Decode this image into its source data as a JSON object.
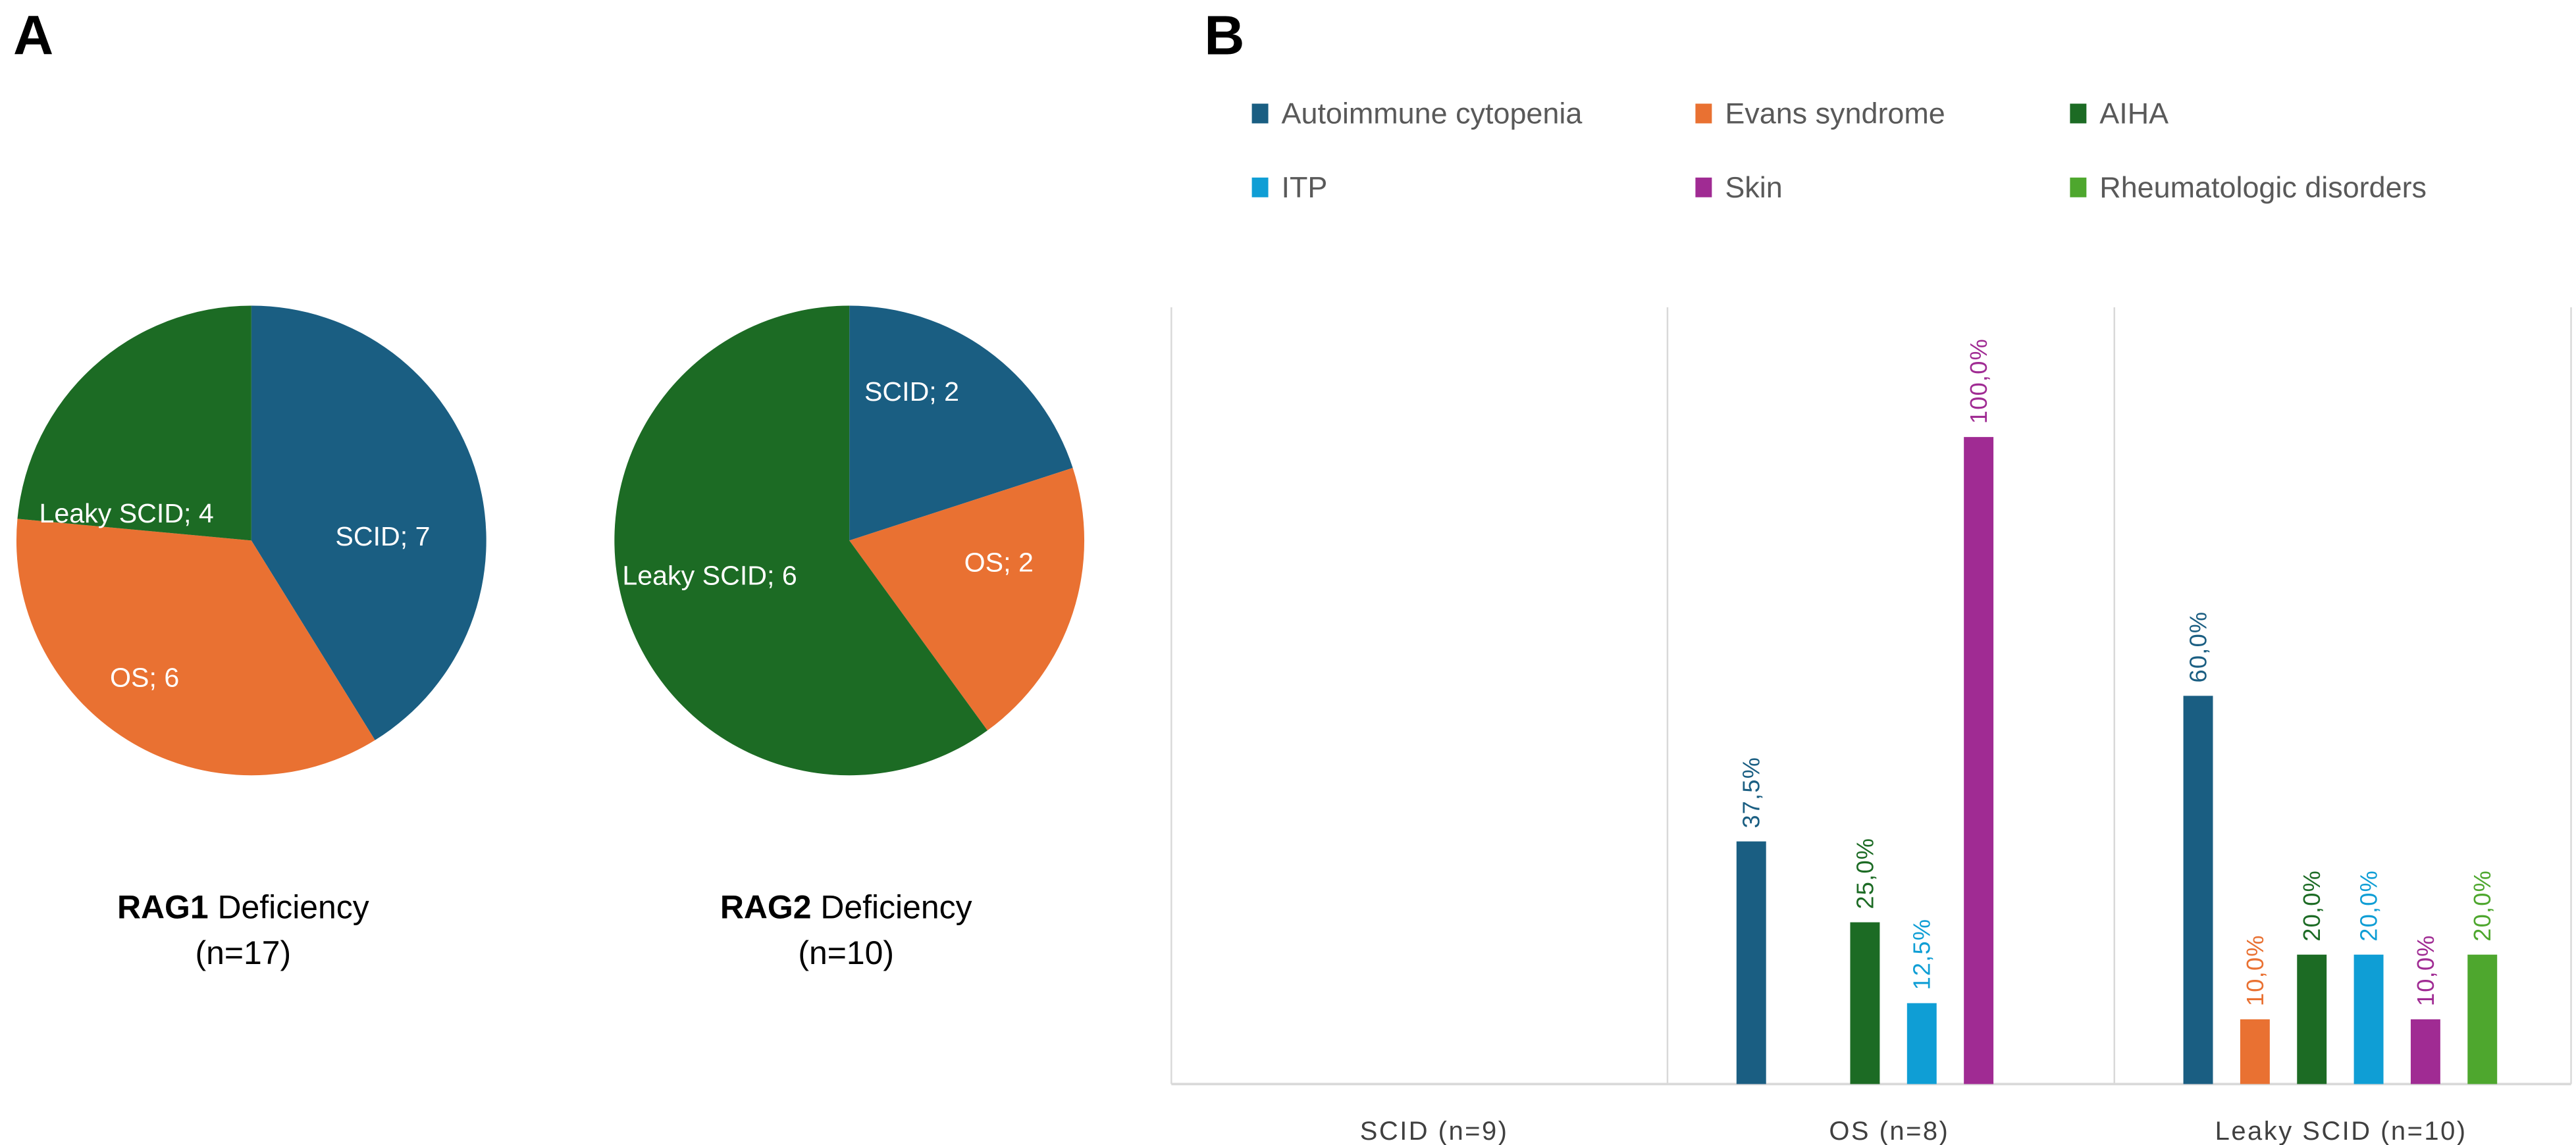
{
  "panels": {
    "a": "A",
    "b": "B"
  },
  "colors": {
    "Autoimmune cytopenia": "#1a5e82",
    "Evans syndrome": "#e97132",
    "AIHA": "#1c6b24",
    "ITP": "#0f9ed5",
    "Skin": "#a02b93",
    "Rheumatologic disorders": "#4ea72e"
  },
  "chart_data": [
    {
      "type": "pie",
      "title_bold": "RAG1",
      "title_rest": " Deficiency",
      "subtitle": "(n=17)",
      "slices": [
        {
          "name": "SCID",
          "value": 7,
          "color": "#1a5e82",
          "label": "SCID; 7"
        },
        {
          "name": "OS",
          "value": 6,
          "color": "#e97132",
          "label": "OS; 6"
        },
        {
          "name": "Leaky SCID",
          "value": 4,
          "color": "#1c6b24",
          "label": "Leaky SCID; 4"
        }
      ]
    },
    {
      "type": "pie",
      "title_bold": "RAG2",
      "title_rest": " Deficiency",
      "subtitle": "(n=10)",
      "slices": [
        {
          "name": "SCID",
          "value": 2,
          "color": "#1a5e82",
          "label": "SCID; 2"
        },
        {
          "name": "OS",
          "value": 2,
          "color": "#e97132",
          "label": "OS; 2"
        },
        {
          "name": "Leaky SCID",
          "value": 6,
          "color": "#1c6b24",
          "label": "Leaky SCID; 6"
        }
      ]
    },
    {
      "type": "bar",
      "categories": [
        "SCID  (n=9)",
        "OS (n=8)",
        "Leaky SCID (n=10)"
      ],
      "legend": [
        "Autoimmune cytopenia",
        "Evans syndrome",
        "AIHA",
        "ITP",
        "Skin",
        "Rheumatologic disorders"
      ],
      "legend_position": "top",
      "ylim": [
        0,
        100
      ],
      "grid": false,
      "series": [
        {
          "name": "Autoimmune cytopenia",
          "values": [
            null,
            37.5,
            60.0
          ],
          "labels": [
            null,
            "37,5%",
            "60,0%"
          ]
        },
        {
          "name": "Evans syndrome",
          "values": [
            null,
            null,
            10.0
          ],
          "labels": [
            null,
            null,
            "10,0%"
          ]
        },
        {
          "name": "AIHA",
          "values": [
            null,
            25.0,
            20.0
          ],
          "labels": [
            null,
            "25,0%",
            "20,0%"
          ]
        },
        {
          "name": "ITP",
          "values": [
            null,
            12.5,
            20.0
          ],
          "labels": [
            null,
            "12,5%",
            "20,0%"
          ]
        },
        {
          "name": "Skin",
          "values": [
            null,
            100.0,
            10.0
          ],
          "labels": [
            null,
            "100,0%",
            "10,0%"
          ]
        },
        {
          "name": "Rheumatologic disorders",
          "values": [
            null,
            null,
            20.0
          ],
          "labels": [
            null,
            null,
            "20,0%"
          ]
        }
      ]
    }
  ]
}
